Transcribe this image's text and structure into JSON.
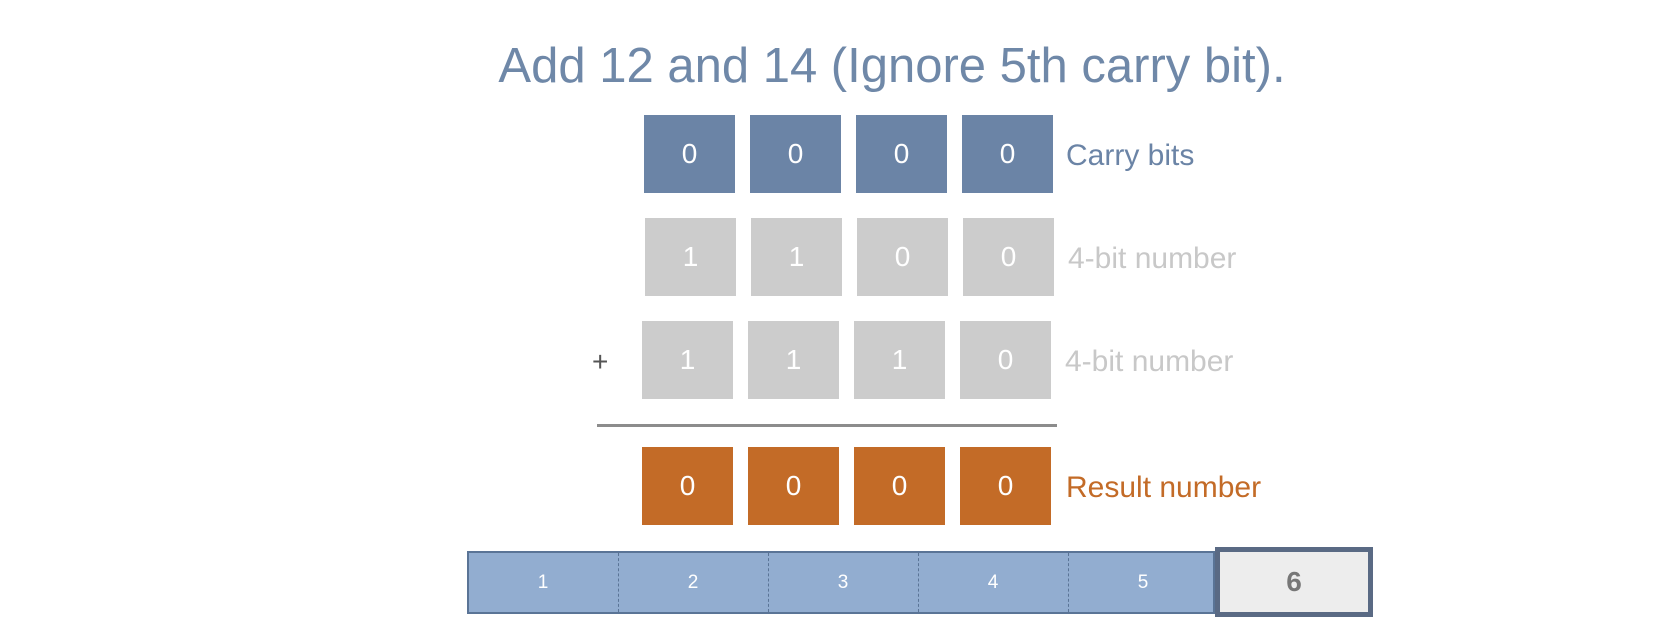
{
  "title": "Add 12 and 14 (Ignore 5th carry bit).",
  "rows": {
    "carry": {
      "bits": [
        "0",
        "0",
        "0",
        "0"
      ],
      "label": "Carry bits"
    },
    "number_a": {
      "bits": [
        "1",
        "1",
        "0",
        "0"
      ],
      "label": "4-bit number"
    },
    "number_b": {
      "bits": [
        "1",
        "1",
        "1",
        "0"
      ],
      "label": "4-bit number",
      "operator": "+"
    },
    "result": {
      "bits": [
        "0",
        "0",
        "0",
        "0"
      ],
      "label": "Result number"
    }
  },
  "stepper": {
    "steps": [
      "1",
      "2",
      "3",
      "4",
      "5"
    ],
    "current": "6"
  },
  "colors": {
    "carry": "#6b84a6",
    "number": "#cccccc",
    "result": "#c36b27",
    "stepper": "#92add0"
  }
}
